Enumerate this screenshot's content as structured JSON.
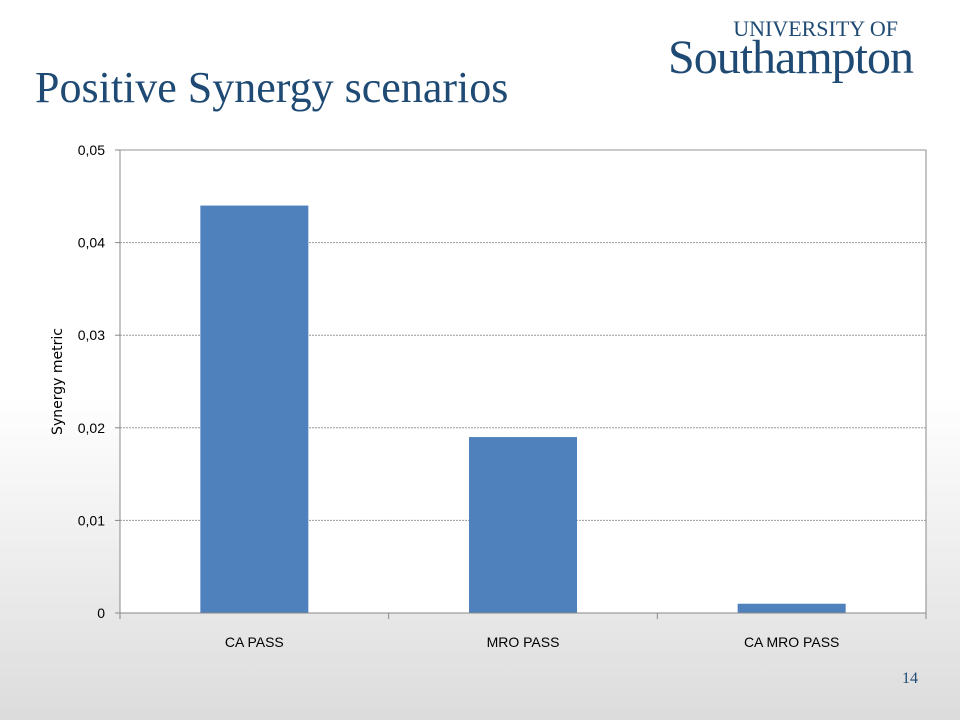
{
  "slide": {
    "title": "Positive Synergy scenarios",
    "page_number": "14"
  },
  "logo": {
    "top_text": "UNIVERSITY OF",
    "main_text": "Southampton"
  },
  "colors": {
    "title": "#1e4a73",
    "bar": "#4f81bd",
    "grid": "#999999",
    "axis": "#888888"
  },
  "chart_data": {
    "type": "bar",
    "categories": [
      "CA PASS",
      "MRO PASS",
      "CA MRO PASS"
    ],
    "values": [
      0.044,
      0.019,
      0.001
    ],
    "title": "",
    "xlabel": "",
    "ylabel": "Synergy metric",
    "ylim": [
      0,
      0.05
    ],
    "yticks": [
      0,
      0.01,
      0.02,
      0.03,
      0.04,
      0.05
    ],
    "ytick_labels": [
      "0",
      "0,01",
      "0,02",
      "0,03",
      "0,04",
      "0,05"
    ],
    "grid": true,
    "legend": "none"
  }
}
